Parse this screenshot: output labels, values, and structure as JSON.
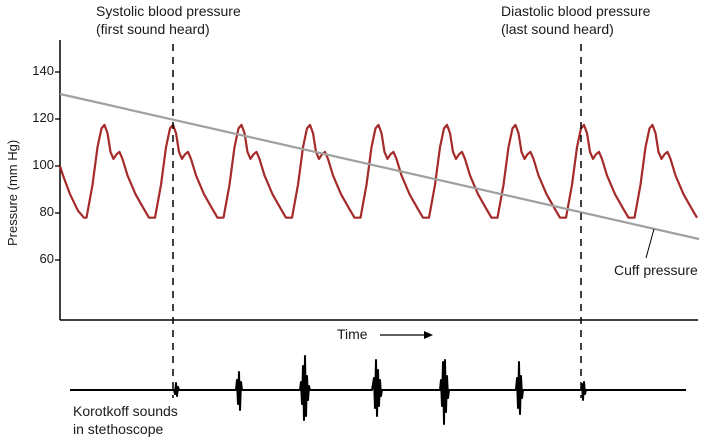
{
  "annotations": {
    "systolic_line1": "Systolic blood pressure",
    "systolic_line2": "(first sound heard)",
    "diastolic_line1": "Diastolic blood pressure",
    "diastolic_line2": "(last sound heard)",
    "cuff_pressure": "Cuff pressure",
    "time": "Time",
    "korotkoff_line1": "Korotkoff sounds",
    "korotkoff_line2": "in stethoscope"
  },
  "axis": {
    "ylabel": "Pressure (mm Hg)",
    "ticks": [
      {
        "id": "t140",
        "value": 140,
        "label": "140"
      },
      {
        "id": "t120",
        "value": 120,
        "label": "120"
      },
      {
        "id": "t100",
        "value": 100,
        "label": "100"
      },
      {
        "id": "t80",
        "value": 80,
        "label": "80"
      },
      {
        "id": "t60",
        "value": 60,
        "label": "60"
      }
    ]
  },
  "colors": {
    "arterial_wave": "#a52a2a",
    "cuff_line": "#a0a0a0",
    "text": "#1a1a1a",
    "axis": "#000000"
  }
}
